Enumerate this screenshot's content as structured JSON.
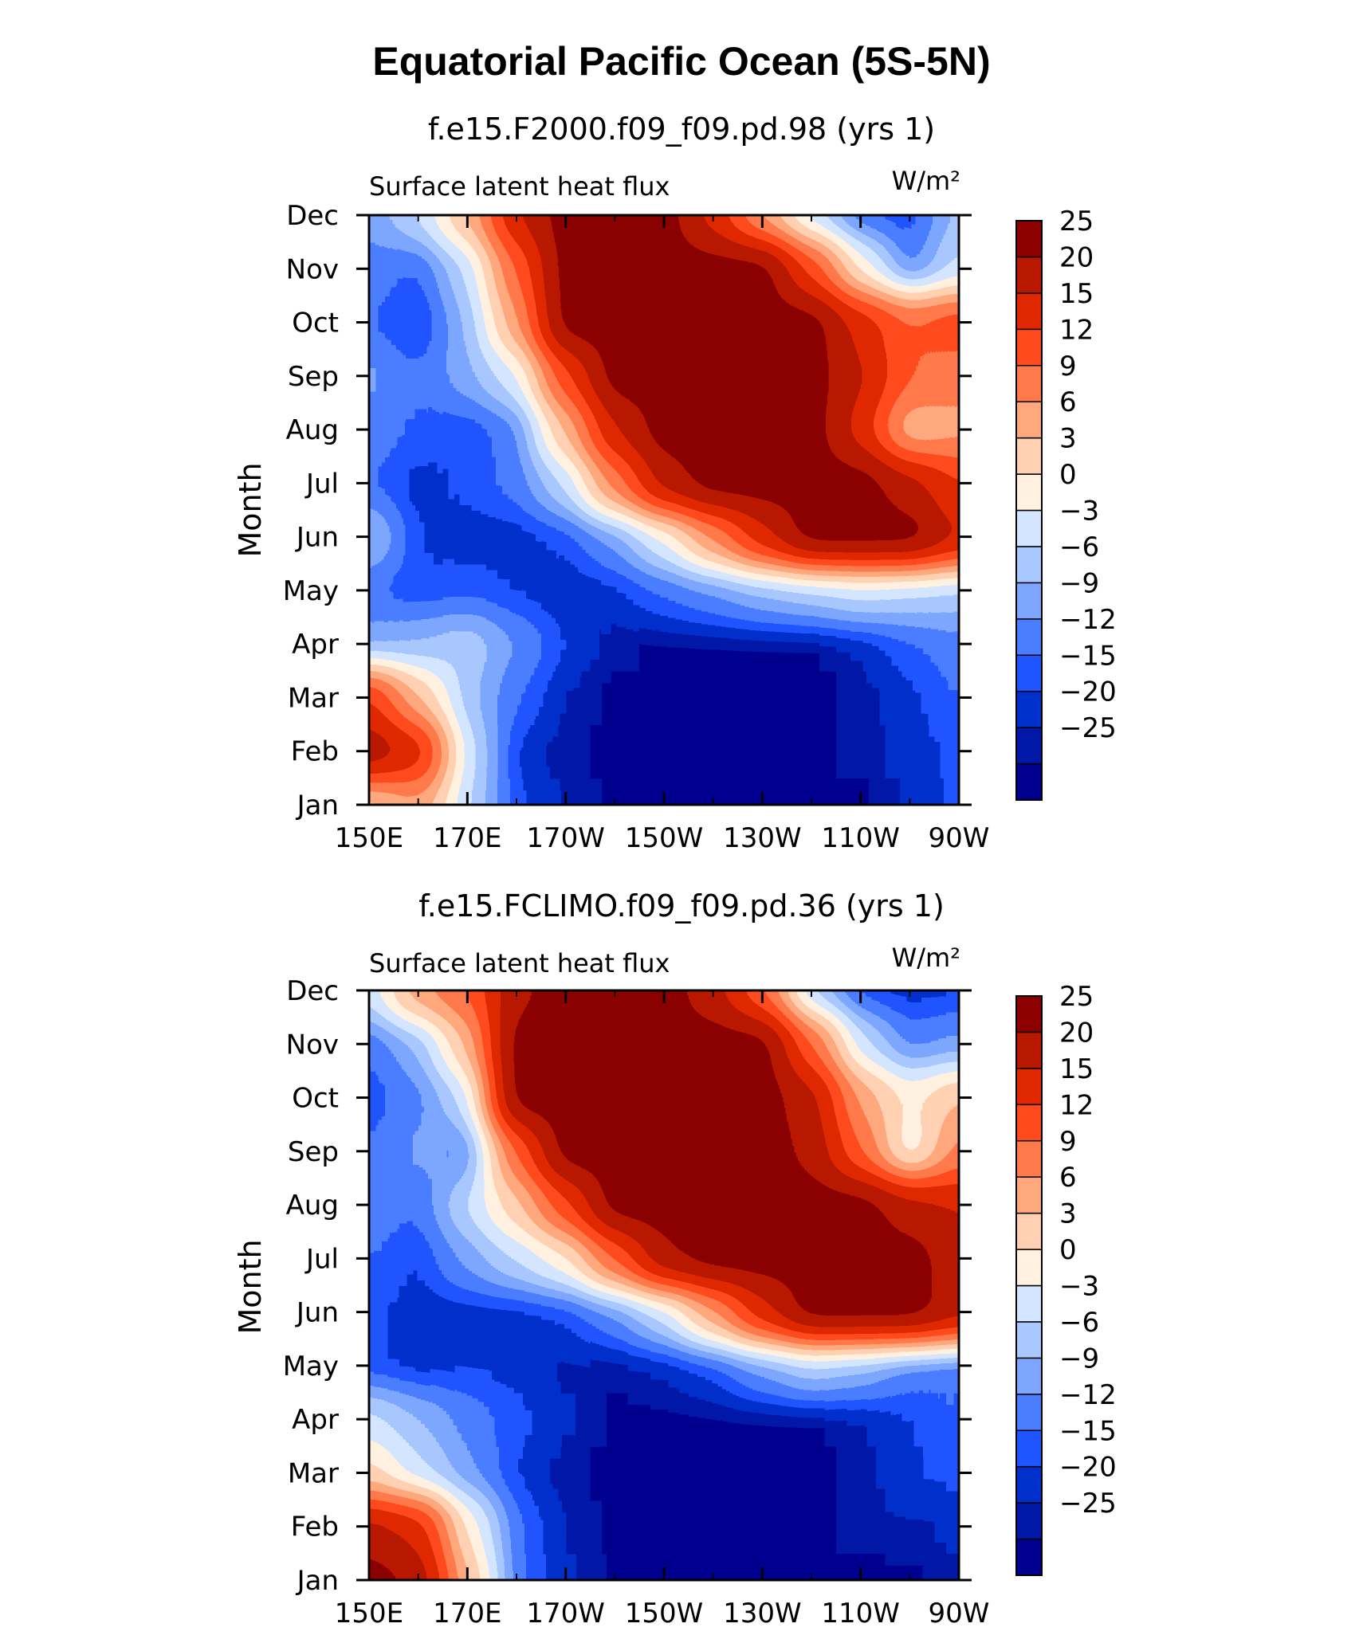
{
  "title": "Equatorial Pacific Ocean (5S-5N)",
  "colorbar": {
    "colors": [
      "#00008f",
      "#0018a8",
      "#0030cc",
      "#1f55ff",
      "#4a7eff",
      "#7ea6ff",
      "#a9c8ff",
      "#d4e6ff",
      "#fff0e0",
      "#ffd0b2",
      "#ffa87e",
      "#ff7a4a",
      "#ff4a1e",
      "#e02800",
      "#b81800",
      "#8c0000"
    ],
    "labels": [
      "25",
      "20",
      "15",
      "12",
      "9",
      "6",
      "3",
      "0",
      "−3",
      "−6",
      "−9",
      "−12",
      "−15",
      "−20",
      "−25"
    ]
  },
  "chart_data": [
    {
      "type": "heatmap",
      "title": "f.e15.F2000.f09_f09.pd.98 (yrs  1)",
      "left_string": "Surface  latent  heat  flux",
      "right_string": "W/m²",
      "ylabel": "Month",
      "x_ticks": [
        "150E",
        "170E",
        "170W",
        "150W",
        "130W",
        "110W",
        "90W"
      ],
      "y_ticks": [
        "Jan",
        "Feb",
        "Mar",
        "Apr",
        "May",
        "Jun",
        "Jul",
        "Aug",
        "Sep",
        "Oct",
        "Nov",
        "Dec"
      ],
      "xlim": [
        "150E",
        "90W"
      ],
      "levels": [
        -25,
        -20,
        -15,
        -12,
        -9,
        -6,
        -3,
        0,
        3,
        6,
        9,
        12,
        15,
        20,
        25
      ],
      "units": "W/m²",
      "grid": [
        [
          4,
          8,
          -3,
          -15,
          -22,
          -26,
          -28,
          -28,
          -28,
          -28,
          -26,
          -20,
          -14
        ],
        [
          24,
          18,
          -2,
          -17,
          -24,
          -28,
          -28,
          -28,
          -28,
          -27,
          -24,
          -18,
          -14
        ],
        [
          16,
          6,
          -5,
          -12,
          -22,
          -28,
          -28,
          -28,
          -28,
          -27,
          -24,
          -17,
          -12
        ],
        [
          -7,
          -6,
          -4,
          -9,
          -16,
          -24,
          -27,
          -28,
          -28,
          -25,
          -20,
          -13,
          -10
        ],
        [
          -12,
          -15,
          -13,
          -16,
          -19,
          -17,
          -12,
          -9,
          -6,
          -4,
          -2,
          -3,
          -4
        ],
        [
          -5,
          -16,
          -18,
          -18,
          -14,
          -8,
          0,
          9,
          18,
          26,
          28,
          26,
          20
        ],
        [
          -12,
          -18,
          -14,
          -11,
          -3,
          10,
          22,
          28,
          28,
          28,
          28,
          22,
          15
        ],
        [
          -10,
          -13,
          -15,
          -10,
          6,
          20,
          28,
          28,
          28,
          28,
          18,
          6,
          8
        ],
        [
          -8,
          -12,
          -7,
          -1,
          14,
          26,
          28,
          28,
          28,
          28,
          21,
          12,
          10
        ],
        [
          -12,
          -18,
          -6,
          8,
          26,
          28,
          28,
          28,
          28,
          26,
          18,
          12,
          14
        ],
        [
          -10,
          -13,
          -3,
          12,
          25,
          28,
          28,
          28,
          25,
          14,
          2,
          -10,
          -2
        ],
        [
          -8,
          -3,
          6,
          20,
          26,
          28,
          26,
          18,
          8,
          -2,
          -12,
          -15,
          -5
        ]
      ]
    },
    {
      "type": "heatmap",
      "title": "f.e15.FCLIMO.f09_f09.pd.36 (yrs  1)",
      "left_string": "Surface  latent  heat  flux",
      "right_string": "W/m²",
      "ylabel": "Month",
      "x_ticks": [
        "150E",
        "170E",
        "170W",
        "150W",
        "130W",
        "110W",
        "90W"
      ],
      "y_ticks": [
        "Jan",
        "Feb",
        "Mar",
        "Apr",
        "May",
        "Jun",
        "Jul",
        "Aug",
        "Sep",
        "Oct",
        "Nov",
        "Dec"
      ],
      "xlim": [
        "150E",
        "90W"
      ],
      "levels": [
        -25,
        -20,
        -15,
        -12,
        -9,
        -6,
        -3,
        0,
        3,
        6,
        9,
        12,
        15,
        20,
        25
      ],
      "units": "W/m²",
      "grid": [
        [
          28,
          24,
          6,
          -12,
          -20,
          -26,
          -28,
          -28,
          -28,
          -28,
          -27,
          -25,
          -22
        ],
        [
          22,
          18,
          2,
          -12,
          -22,
          -26,
          -28,
          -28,
          -28,
          -27,
          -24,
          -22,
          -20
        ],
        [
          4,
          -2,
          -8,
          -16,
          -24,
          -28,
          -28,
          -28,
          -28,
          -27,
          -24,
          -16,
          -14
        ],
        [
          -2,
          -6,
          -10,
          -14,
          -20,
          -27,
          -28,
          -28,
          -28,
          -27,
          -22,
          -16,
          -12
        ],
        [
          -14,
          -18,
          -16,
          -17,
          -22,
          -24,
          -20,
          -14,
          -8,
          -4,
          -6,
          -10,
          -12
        ],
        [
          -14,
          -18,
          -18,
          -18,
          -15,
          -9,
          -2,
          8,
          18,
          26,
          28,
          28,
          22
        ],
        [
          -12,
          -16,
          -8,
          -3,
          2,
          12,
          24,
          28,
          28,
          28,
          28,
          28,
          22
        ],
        [
          -10,
          -12,
          -3,
          5,
          14,
          26,
          28,
          28,
          28,
          28,
          26,
          22,
          20
        ],
        [
          -12,
          -8,
          -10,
          12,
          28,
          28,
          28,
          28,
          28,
          24,
          12,
          0,
          10
        ],
        [
          -14,
          -10,
          -2,
          28,
          28,
          28,
          28,
          28,
          28,
          22,
          8,
          2,
          6
        ],
        [
          -12,
          -6,
          6,
          28,
          28,
          28,
          28,
          28,
          26,
          12,
          -2,
          -10,
          -8
        ],
        [
          -2,
          8,
          12,
          24,
          28,
          28,
          26,
          22,
          12,
          -4,
          -14,
          -18,
          -16
        ]
      ]
    }
  ]
}
